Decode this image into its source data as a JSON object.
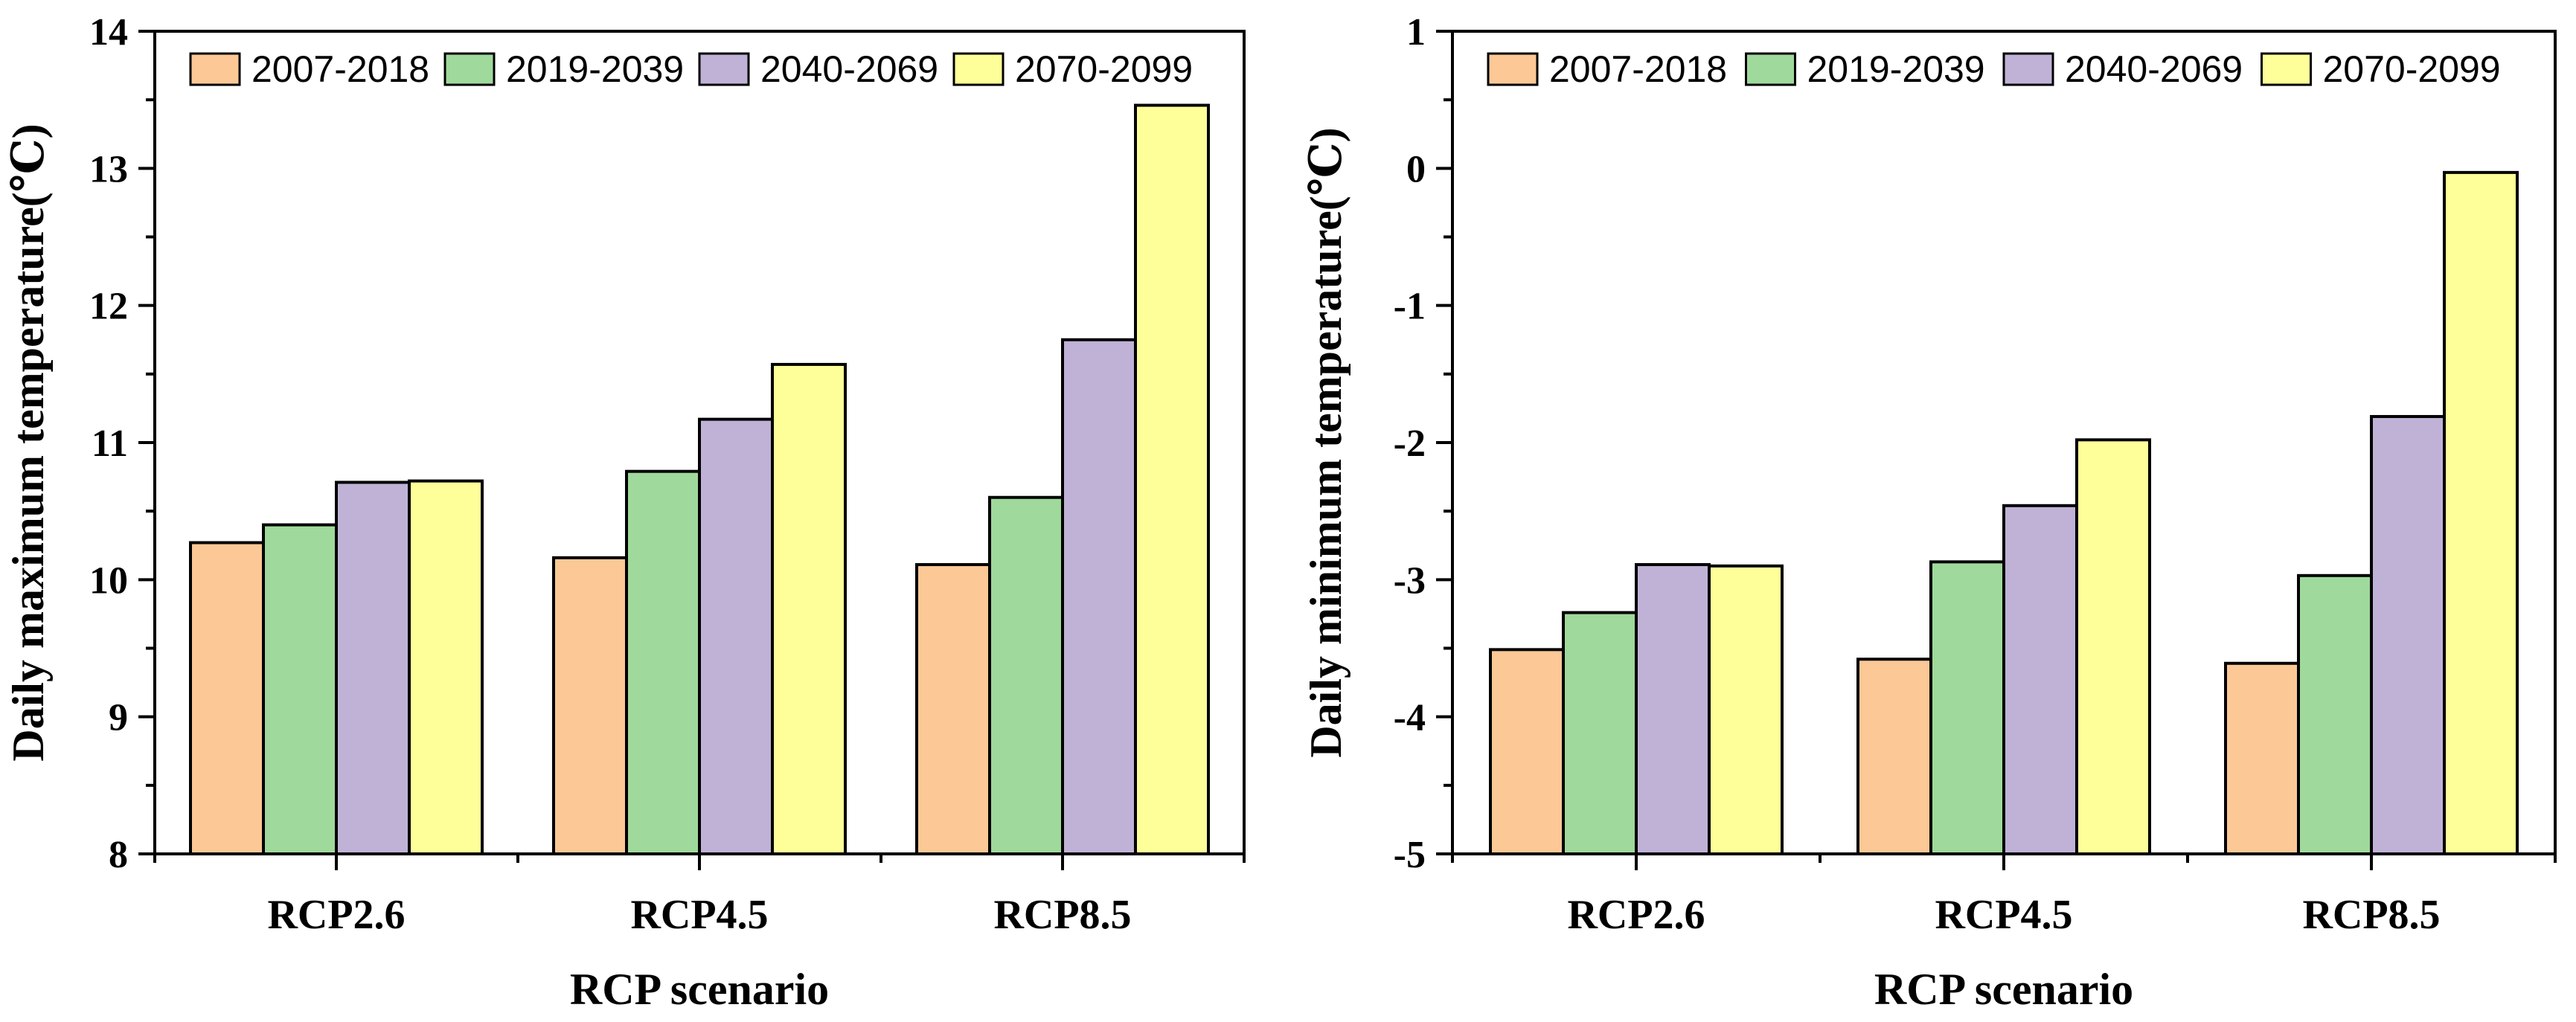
{
  "chart_data": [
    {
      "type": "bar",
      "categories": [
        "RCP2.6",
        "RCP4.5",
        "RCP8.5"
      ],
      "series": [
        {
          "name": "2007-2018",
          "color": "#FBC896",
          "values": [
            10.27,
            10.16,
            10.11
          ]
        },
        {
          "name": "2019-2039",
          "color": "#9FD99B",
          "values": [
            10.4,
            10.79,
            10.6
          ]
        },
        {
          "name": "2040-2069",
          "color": "#BFB2D6",
          "values": [
            10.71,
            11.17,
            11.75
          ]
        },
        {
          "name": "2070-2099",
          "color": "#FFFF99",
          "values": [
            10.72,
            11.57,
            13.46
          ]
        }
      ],
      "title": "",
      "xlabel": "RCP scenario",
      "ylabel": "Daily maximum temperature(℃)",
      "ylim": [
        8,
        14
      ],
      "yticks": [
        8,
        9,
        10,
        11,
        12,
        13,
        14
      ],
      "ytick_labels": [
        "8",
        "9",
        "10",
        "11",
        "12",
        "13",
        "14"
      ],
      "legend_position": "top",
      "grid": false
    },
    {
      "type": "bar",
      "categories": [
        "RCP2.6",
        "RCP4.5",
        "RCP8.5"
      ],
      "series": [
        {
          "name": "2007-2018",
          "color": "#FBC896",
          "values": [
            -3.51,
            -3.58,
            -3.61
          ]
        },
        {
          "name": "2019-2039",
          "color": "#9FD99B",
          "values": [
            -3.24,
            -2.87,
            -2.97
          ]
        },
        {
          "name": "2040-2069",
          "color": "#BFB2D6",
          "values": [
            -2.89,
            -2.46,
            -1.81
          ]
        },
        {
          "name": "2070-2099",
          "color": "#FFFF99",
          "values": [
            -2.9,
            -1.98,
            -0.03
          ]
        }
      ],
      "title": "",
      "xlabel": "RCP scenario",
      "ylabel": "Daily minimum temperature(℃)",
      "ylim": [
        -5,
        1
      ],
      "yticks": [
        -5,
        -4,
        -3,
        -2,
        -1,
        0,
        1
      ],
      "ytick_labels": [
        "-5",
        "-4",
        "-3",
        "-2",
        "-1",
        "0",
        "1"
      ],
      "legend_position": "top",
      "grid": false
    }
  ]
}
